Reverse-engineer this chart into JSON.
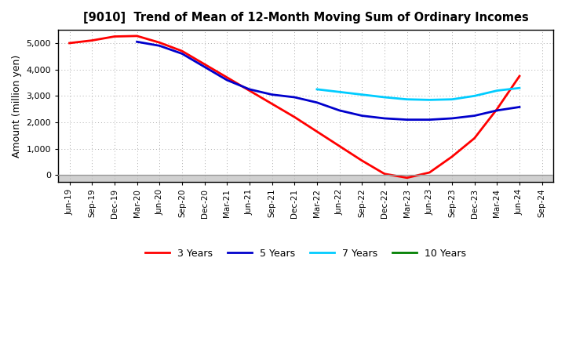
{
  "title": "[9010]  Trend of Mean of 12-Month Moving Sum of Ordinary Incomes",
  "ylabel": "Amount (million yen)",
  "background_color": "#ffffff",
  "plot_bg_color": "#ffffff",
  "ylim": [
    -250,
    5500
  ],
  "yticks": [
    0,
    1000,
    2000,
    3000,
    4000,
    5000
  ],
  "series": {
    "3years": {
      "color": "#ff0000",
      "label": "3 Years",
      "dates": [
        "Jun-19",
        "Sep-19",
        "Dec-19",
        "Mar-20",
        "Jun-20",
        "Sep-20",
        "Dec-20",
        "Mar-21",
        "Jun-21",
        "Sep-21",
        "Dec-21",
        "Mar-22",
        "Jun-22",
        "Sep-22",
        "Dec-22",
        "Mar-23",
        "Jun-23",
        "Sep-23",
        "Dec-23",
        "Mar-24",
        "Jun-24"
      ],
      "values": [
        5000,
        5100,
        5250,
        5270,
        5020,
        4700,
        4200,
        3700,
        3200,
        2700,
        2200,
        1650,
        1100,
        550,
        50,
        -100,
        100,
        700,
        1400,
        2500,
        3750
      ]
    },
    "5years": {
      "color": "#0000cc",
      "label": "5 Years",
      "dates": [
        "Jun-19",
        "Sep-19",
        "Dec-19",
        "Mar-20",
        "Jun-20",
        "Sep-20",
        "Dec-20",
        "Mar-21",
        "Jun-21",
        "Sep-21",
        "Dec-21",
        "Mar-22",
        "Jun-22",
        "Sep-22",
        "Dec-22",
        "Mar-23",
        "Jun-23",
        "Sep-23",
        "Dec-23",
        "Mar-24",
        "Jun-24"
      ],
      "values": [
        null,
        null,
        null,
        5050,
        4900,
        4600,
        4100,
        3600,
        3250,
        3050,
        2950,
        2750,
        2450,
        2250,
        2150,
        2100,
        2100,
        2150,
        2250,
        2450,
        2580
      ]
    },
    "7years": {
      "color": "#00ccff",
      "label": "7 Years",
      "dates": [
        "Mar-22",
        "Jun-22",
        "Sep-22",
        "Dec-22",
        "Mar-23",
        "Jun-23",
        "Sep-23",
        "Dec-23",
        "Mar-24",
        "Jun-24"
      ],
      "values": [
        3250,
        3150,
        3050,
        2950,
        2870,
        2850,
        2870,
        3000,
        3200,
        3300
      ]
    },
    "10years": {
      "color": "#008000",
      "label": "10 Years",
      "dates": [],
      "values": []
    }
  },
  "xtick_labels": [
    "Jun-19",
    "Sep-19",
    "Dec-19",
    "Mar-20",
    "Jun-20",
    "Sep-20",
    "Dec-20",
    "Mar-21",
    "Jun-21",
    "Sep-21",
    "Dec-21",
    "Mar-22",
    "Jun-22",
    "Sep-22",
    "Dec-22",
    "Mar-23",
    "Jun-23",
    "Sep-23",
    "Dec-23",
    "Mar-24",
    "Jun-24",
    "Sep-24"
  ]
}
